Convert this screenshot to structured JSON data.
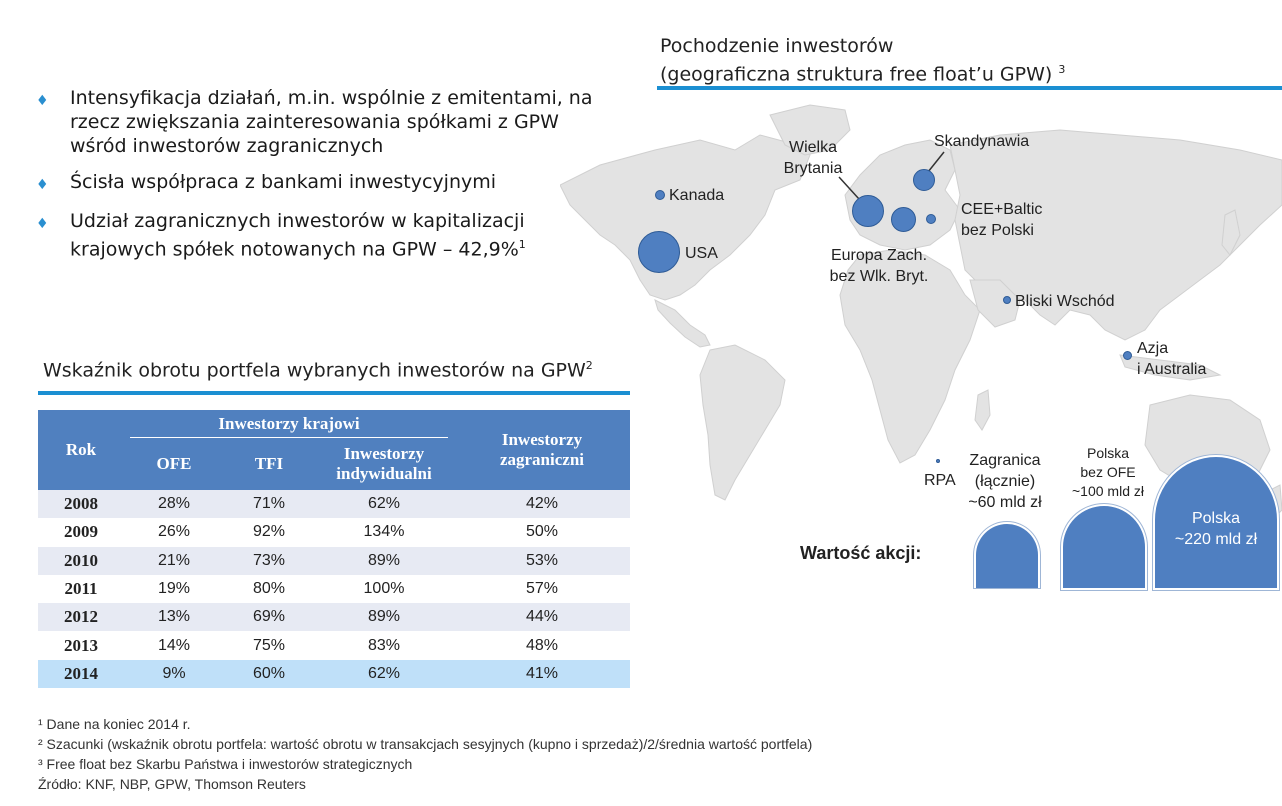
{
  "bullets": [
    {
      "text": "Intensyfikacja działań, m.in. wspólnie z emitentami, na rzecz zwiększania zainteresowania spółkami z GPW wśród inwestorów zagranicznych",
      "sup": ""
    },
    {
      "text": "Ścisła współpraca z bankami inwestycyjnymi",
      "sup": ""
    },
    {
      "text": "Udział zagranicznych inwestorów w kapitalizacji krajowych spółek notowanych na GPW – 42,9%",
      "sup": "1"
    }
  ],
  "map": {
    "title_line1": "Pochodzenie inwestorów",
    "title_line2": "(geograficzna struktura free float’u GPW)",
    "title_sup": "3",
    "labels": {
      "kanada": "Kanada",
      "usa": "USA",
      "wielka_brytania_1": "Wielka",
      "wielka_brytania_2": "Brytania",
      "skandynawia": "Skandynawia",
      "cee_1": "CEE+Baltic",
      "cee_2": "bez Polski",
      "europa_1": "Europa Zach.",
      "europa_2": "bez Wlk. Bryt.",
      "bliski_wschod": "Bliski Wschód",
      "azja_1": "Azja",
      "azja_2": "i Australia",
      "rpa": "RPA"
    },
    "colors": {
      "bubble": "#4f7fc1",
      "land": "#e2e2e2",
      "accent_rule": "#1b8fd2"
    }
  },
  "value": {
    "title": "Wartość akcji:",
    "zagranica": [
      "Zagranica",
      "(łącznie)",
      "~60 mld zł"
    ],
    "polska_bez_ofe": [
      "Polska",
      "bez OFE",
      "~100 mld zł"
    ],
    "polska": [
      "Polska",
      "~220 mld zł"
    ]
  },
  "table": {
    "title": "Wskaźnik obrotu portfela wybranych inwestorów na GPW",
    "title_sup": "2",
    "header": {
      "rok": "Rok",
      "krajowi": "Inwestorzy krajowi",
      "ofe": "OFE",
      "tfi": "TFI",
      "indywidualni_1": "Inwestorzy",
      "indywidualni_2": "indywidualni",
      "zagraniczni_1": "Inwestorzy",
      "zagraniczni_2": "zagraniczni"
    },
    "rows": [
      {
        "year": "2008",
        "ofe": "28%",
        "tfi": "71%",
        "ind": "62%",
        "zag": "42%"
      },
      {
        "year": "2009",
        "ofe": "26%",
        "tfi": "92%",
        "ind": "134%",
        "zag": "50%"
      },
      {
        "year": "2010",
        "ofe": "21%",
        "tfi": "73%",
        "ind": "89%",
        "zag": "53%"
      },
      {
        "year": "2011",
        "ofe": "19%",
        "tfi": "80%",
        "ind": "100%",
        "zag": "57%"
      },
      {
        "year": "2012",
        "ofe": "13%",
        "tfi": "69%",
        "ind": "89%",
        "zag": "44%"
      },
      {
        "year": "2013",
        "ofe": "14%",
        "tfi": "75%",
        "ind": "83%",
        "zag": "48%"
      },
      {
        "year": "2014",
        "ofe": "9%",
        "tfi": "60%",
        "ind": "62%",
        "zag": "41%"
      }
    ]
  },
  "footnotes": [
    "¹ Dane na koniec 2014 r.",
    "² Szacunki (wskaźnik obrotu portfela: wartość obrotu w transakcjach sesyjnych (kupno i sprzedaż)/2/średnia wartość  portfela)",
    "³ Free float bez Skarbu Państwa i inwestorów strategicznych",
    "Źródło: KNF, NBP, GPW, Thomson Reuters"
  ]
}
